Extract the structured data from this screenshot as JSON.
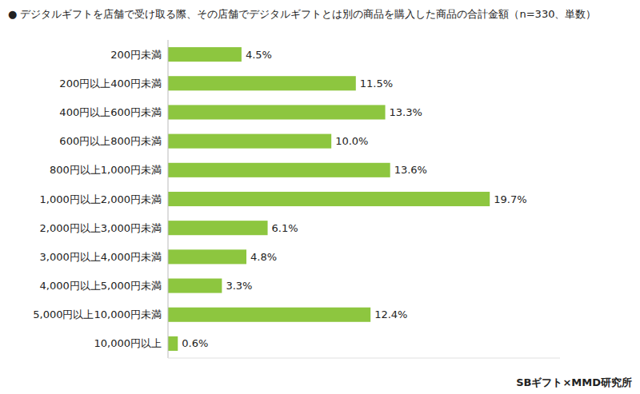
{
  "chart_data": {
    "type": "bar",
    "orientation": "horizontal",
    "title": "● デジタルギフトを店舗で受け取る際、その店舗でデジタルギフトとは別の商品を購入した商品の合計金額（n=330、単数）",
    "categories": [
      "200円未満",
      "200円以上400円未満",
      "400円以上600円未満",
      "600円以上800円未満",
      "800円以上1,000円未満",
      "1,000円以上2,000円未満",
      "2,000円以上3,000円未満",
      "3,000円以上4,000円未満",
      "4,000円以上5,000円未満",
      "5,000円以上10,000円未満",
      "10,000円以上"
    ],
    "values": [
      4.5,
      11.5,
      13.3,
      10.0,
      13.6,
      19.7,
      6.1,
      4.8,
      3.3,
      12.4,
      0.6
    ],
    "value_labels": [
      "4.5%",
      "11.5%",
      "13.3%",
      "10.0%",
      "13.6%",
      "19.7%",
      "6.1%",
      "4.8%",
      "3.3%",
      "12.4%",
      "0.6%"
    ],
    "color": "#8DC63F",
    "xlim": [
      0,
      24
    ],
    "data_labels": true,
    "tick_labels": "y",
    "grid": false,
    "annotations": [
      "SBギフト×MMD研究所"
    ]
  }
}
